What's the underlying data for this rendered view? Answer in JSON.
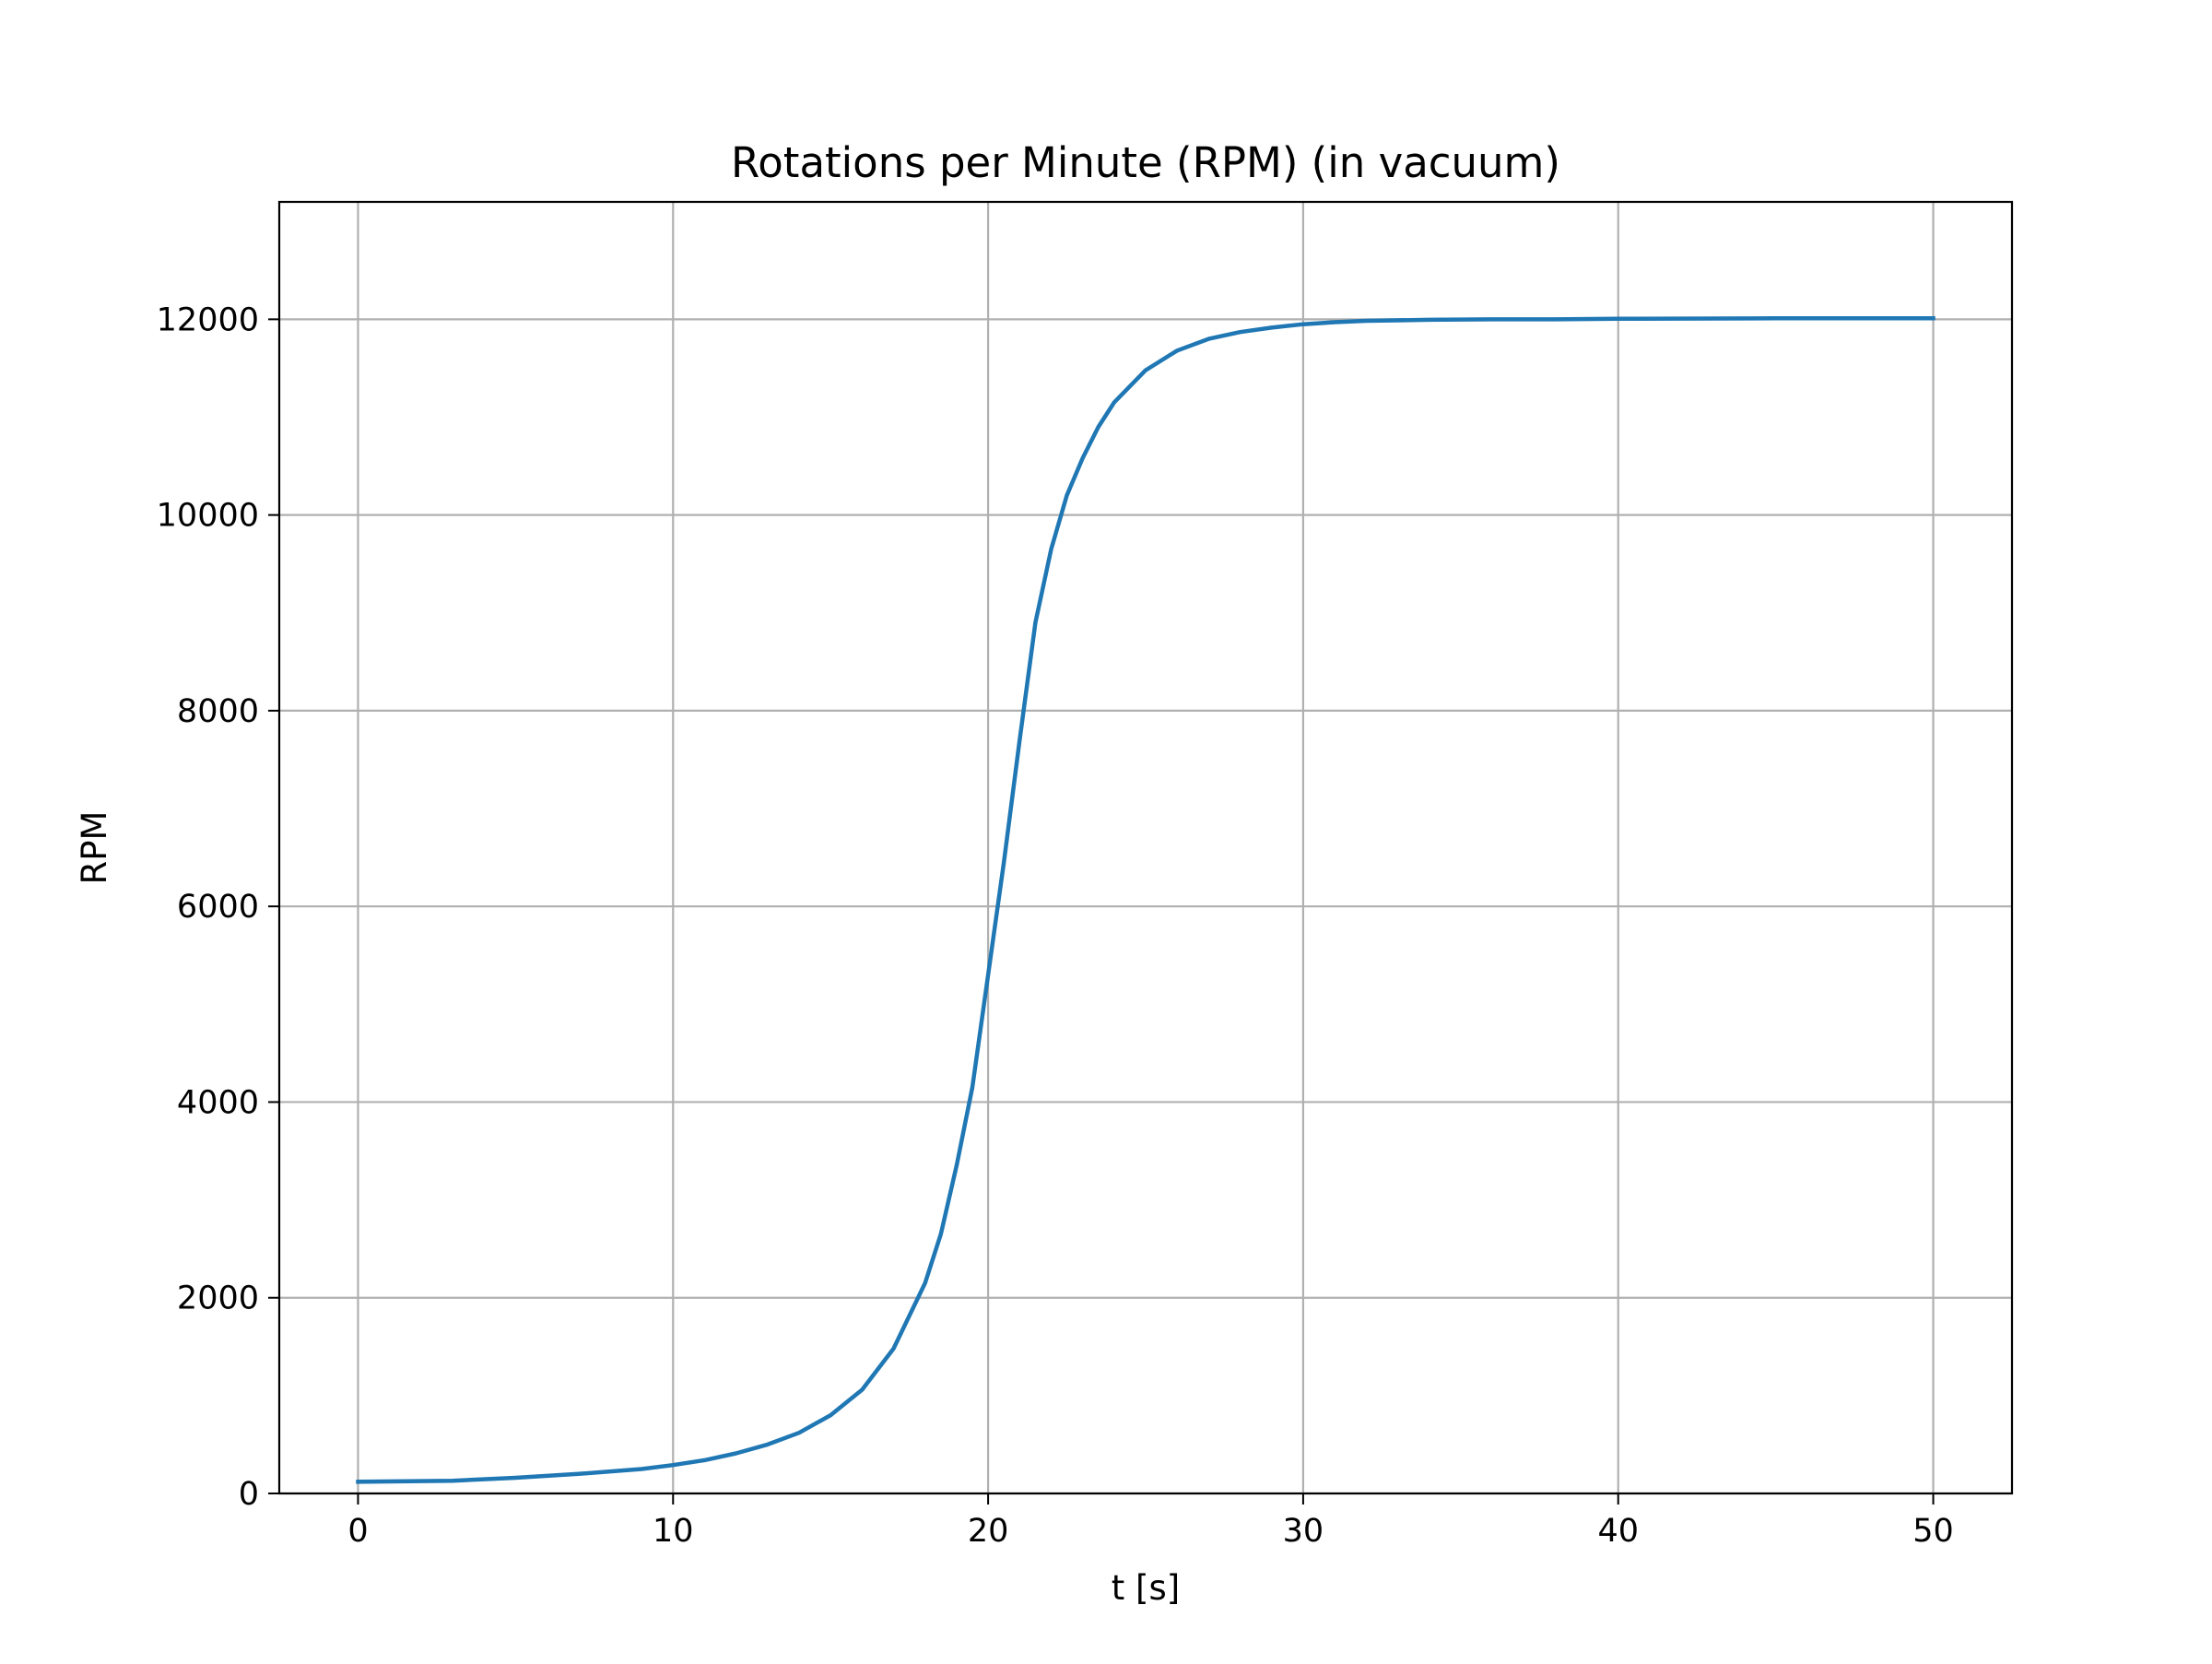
{
  "chart_data": {
    "type": "line",
    "title": "Rotations per Minute (RPM) (in vacuum)",
    "xlabel": "t [s]",
    "ylabel": "RPM",
    "xlim": [
      -2.5,
      52.5
    ],
    "ylim": [
      0,
      13200
    ],
    "xticks": [
      0,
      10,
      20,
      30,
      40,
      50
    ],
    "yticks": [
      0,
      2000,
      4000,
      6000,
      8000,
      10000,
      12000
    ],
    "grid": true,
    "series": [
      {
        "color": "#1f77b4",
        "x": [
          0,
          3,
          5,
          7,
          9,
          10,
          11,
          12,
          13,
          14,
          15,
          16,
          17,
          18,
          18.5,
          19,
          19.5,
          20,
          20.5,
          21,
          21.5,
          22,
          22.5,
          23,
          23.5,
          24,
          25,
          26,
          27,
          28,
          29,
          30,
          31,
          32,
          34,
          36,
          38,
          40,
          45,
          50
        ],
        "y": [
          120,
          130,
          160,
          200,
          250,
          290,
          340,
          410,
          500,
          620,
          800,
          1060,
          1480,
          2150,
          2650,
          3350,
          4150,
          5300,
          6450,
          7700,
          8900,
          9650,
          10200,
          10580,
          10900,
          11150,
          11480,
          11680,
          11800,
          11870,
          11915,
          11950,
          11970,
          11985,
          11995,
          12000,
          12000,
          12005,
          12010,
          12010
        ]
      }
    ]
  }
}
